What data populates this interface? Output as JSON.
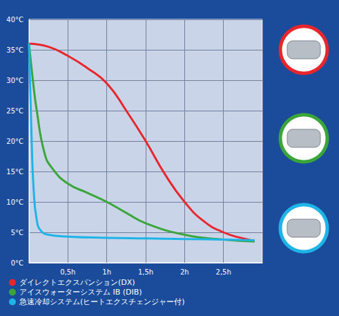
{
  "chart_data": {
    "type": "line",
    "xlim": [
      0,
      3
    ],
    "xticks": [
      {
        "value": 0.5,
        "label": "0,5h"
      },
      {
        "value": 1,
        "label": "1h"
      },
      {
        "value": 1.5,
        "label": "1,5h"
      },
      {
        "value": 2,
        "label": "2h"
      },
      {
        "value": 2.5,
        "label": "2,5h"
      }
    ],
    "ylim": [
      0,
      40
    ],
    "yticks": [
      {
        "value": 0,
        "label": "0°C"
      },
      {
        "value": 5,
        "label": "5°C"
      },
      {
        "value": 10,
        "label": "10°C"
      },
      {
        "value": 15,
        "label": "15°C"
      },
      {
        "value": 20,
        "label": "20°C"
      },
      {
        "value": 25,
        "label": "25°C"
      },
      {
        "value": 30,
        "label": "30°C"
      },
      {
        "value": 35,
        "label": "35°C"
      },
      {
        "value": 40,
        "label": "40°C"
      }
    ],
    "grid": true,
    "legend": "bottom-left",
    "series": [
      {
        "name": "ダイレクトエクスパンション(DX)",
        "color": "#e8262c",
        "x": [
          0,
          0.25,
          0.5,
          0.75,
          1,
          1.25,
          1.5,
          1.75,
          2,
          2.25,
          2.5,
          2.75,
          2.9
        ],
        "values": [
          36,
          35.5,
          34,
          32,
          29.5,
          25,
          20,
          14.5,
          10,
          6.8,
          5,
          4,
          3.6
        ]
      },
      {
        "name": "アイスウォーターシステム IB (DIB)",
        "color": "#3aa63a",
        "x": [
          0,
          0.05,
          0.1,
          0.2,
          0.3,
          0.5,
          0.75,
          1,
          1.25,
          1.5,
          2,
          2.5,
          2.9
        ],
        "values": [
          36,
          30,
          25,
          18,
          15.5,
          13,
          11.5,
          10,
          8.2,
          6.5,
          4.6,
          3.8,
          3.5
        ]
      },
      {
        "name": "急速冷却システム(ヒートエクスチェンジャー付)",
        "color": "#1fb4e8",
        "x": [
          0,
          0.03,
          0.06,
          0.1,
          0.15,
          0.25,
          0.5,
          1,
          1.5,
          2,
          2.5,
          2.9
        ],
        "values": [
          36,
          22,
          12,
          7,
          5.3,
          4.6,
          4.3,
          4.1,
          4,
          3.9,
          3.8,
          3.7
        ]
      }
    ]
  }
}
